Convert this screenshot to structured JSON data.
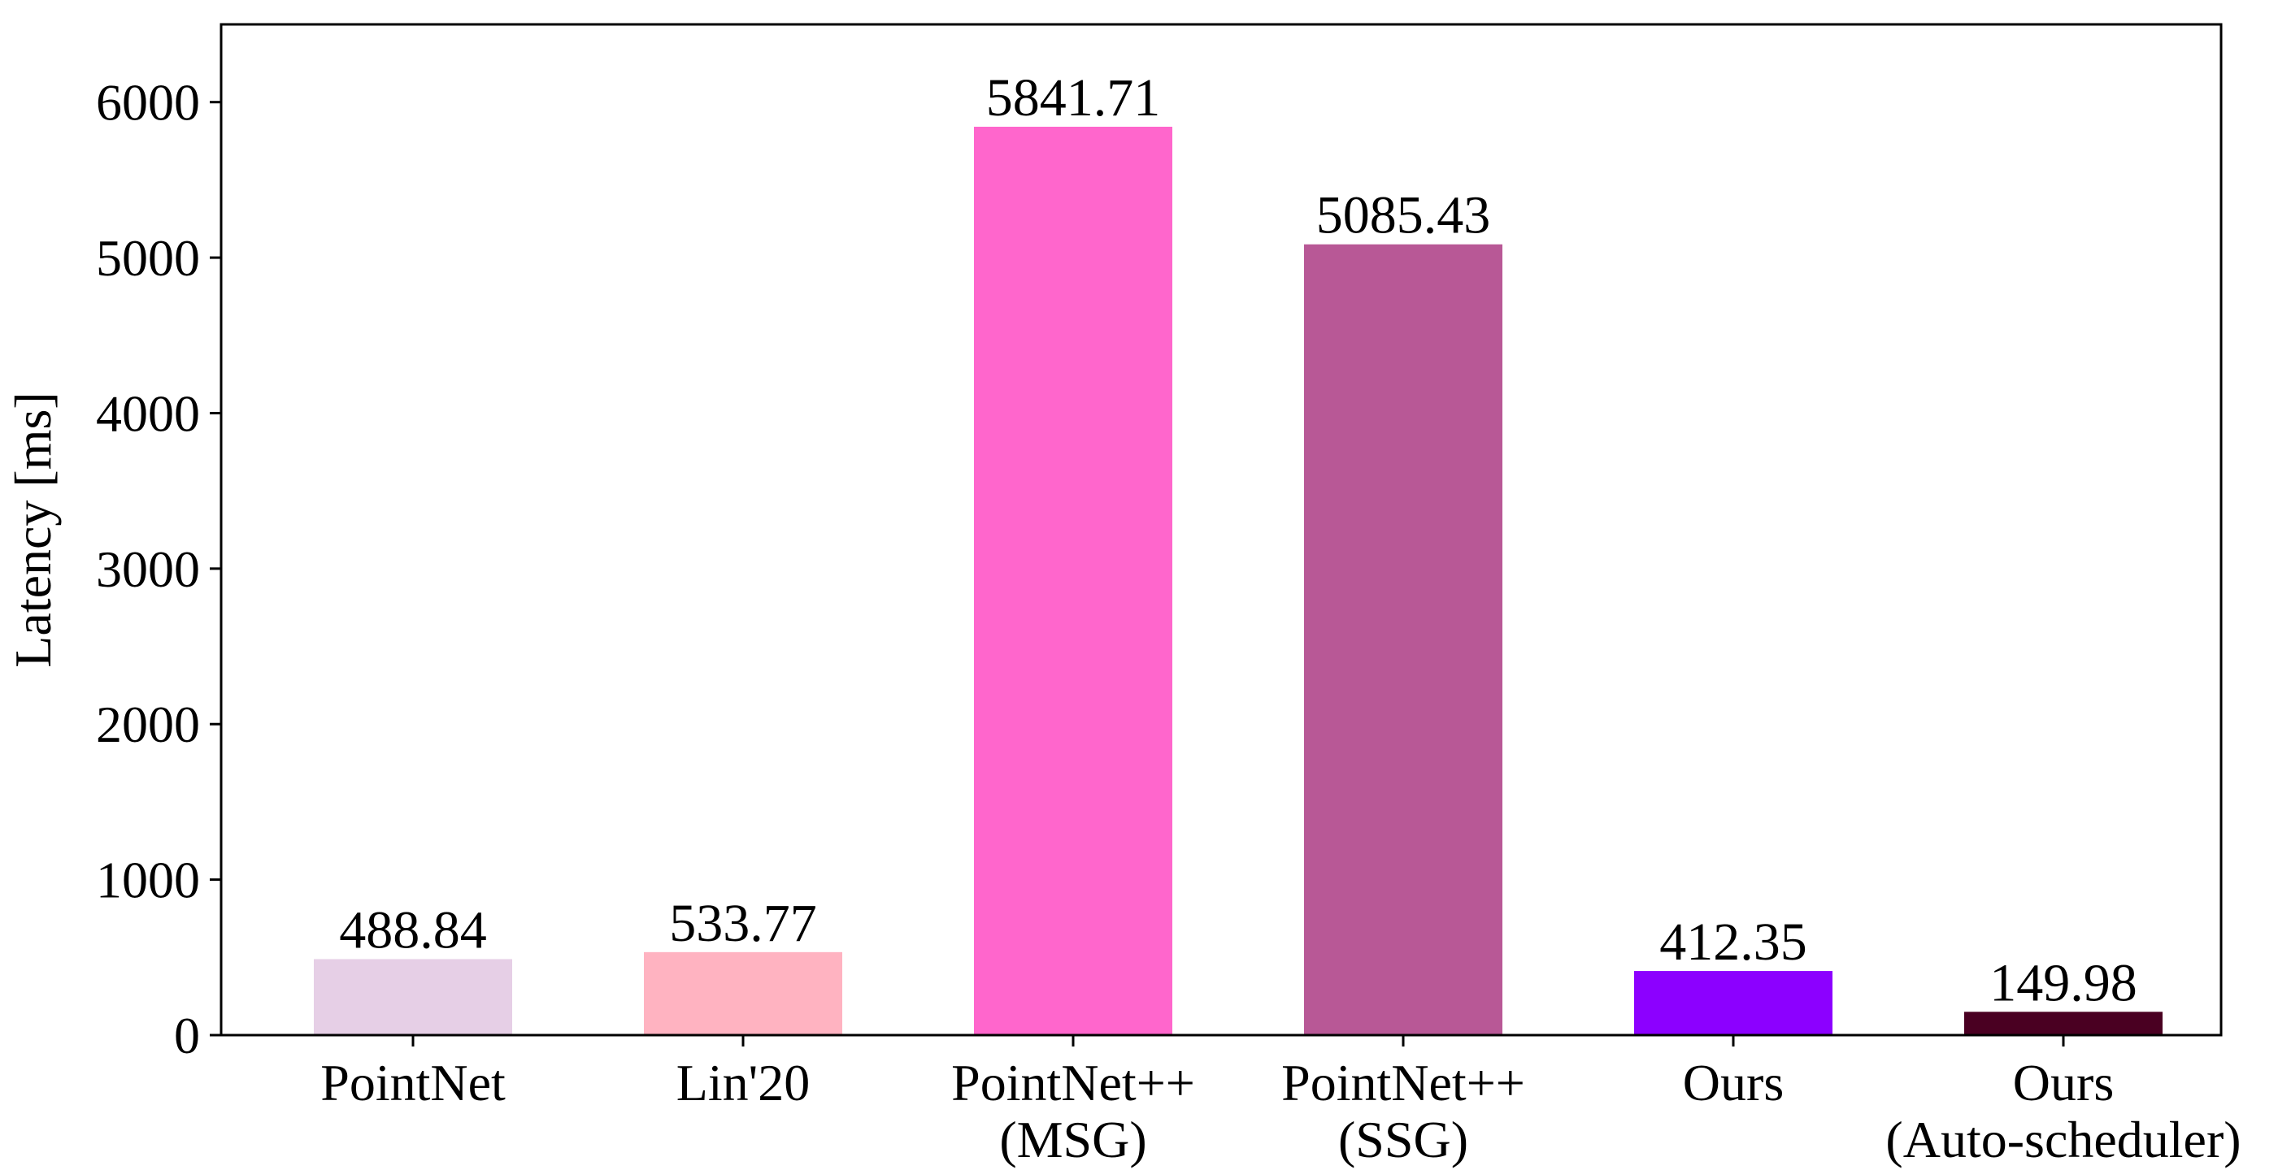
{
  "chart_data": {
    "type": "bar",
    "title": "",
    "xlabel": "",
    "ylabel": "Latency [ms]",
    "ylim": [
      0,
      6500
    ],
    "yticks": [
      0,
      1000,
      2000,
      3000,
      4000,
      5000,
      6000
    ],
    "ytick_labels": [
      "0",
      "1000",
      "2000",
      "3000",
      "4000",
      "5000",
      "6000"
    ],
    "grid": false,
    "legend": "none",
    "categories": [
      [
        "PointNet"
      ],
      [
        "Lin'20"
      ],
      [
        "PointNet++",
        "(MSG)"
      ],
      [
        "PointNet++",
        "(SSG)"
      ],
      [
        "Ours"
      ],
      [
        "Ours",
        "(Auto-scheduler)"
      ]
    ],
    "values": [
      488.84,
      533.77,
      5841.71,
      5085.43,
      412.35,
      149.98
    ],
    "value_labels": [
      "488.84",
      "533.77",
      "5841.71",
      "5085.43",
      "412.35",
      "149.98"
    ],
    "colors": [
      "#e6cfe6",
      "#ffb3c1",
      "#ff66cc",
      "#b85896",
      "#8c00ff",
      "#4a0022"
    ]
  }
}
